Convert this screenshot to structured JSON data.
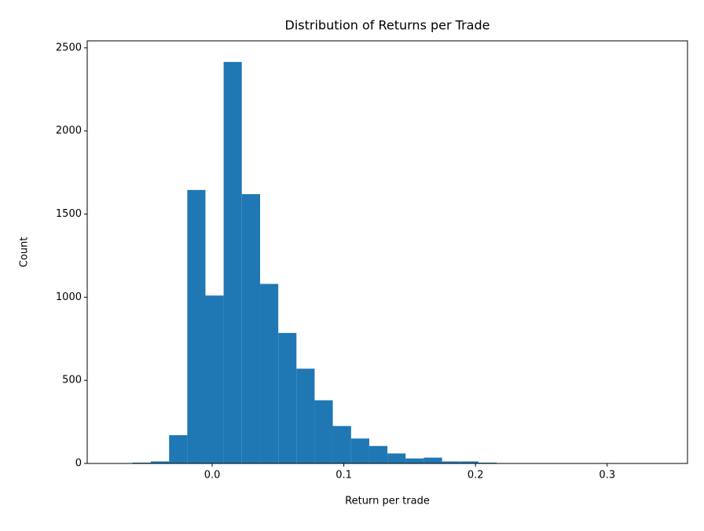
{
  "chart_data": {
    "type": "histogram",
    "title": "Distribution of Returns per Trade",
    "x_label": "Return per trade",
    "y_label": "Count",
    "bins": [
      -0.0742,
      -0.0604,
      -0.0466,
      -0.0327,
      -0.0189,
      -0.0051,
      0.0087,
      0.0225,
      0.0364,
      0.0502,
      0.064,
      0.0778,
      0.0916,
      0.1055,
      0.1193,
      0.1331,
      0.1469,
      0.1607,
      0.1746,
      0.1884,
      0.2022,
      0.216,
      0.2298,
      0.2437,
      0.2575,
      0.2713,
      0.2851,
      0.2989,
      0.3128,
      0.3266,
      0.3404
    ],
    "values": [
      1,
      5,
      12,
      170,
      1645,
      1010,
      2415,
      1620,
      1080,
      785,
      570,
      380,
      225,
      150,
      105,
      60,
      30,
      35,
      12,
      12,
      5,
      2,
      2,
      1,
      1,
      0,
      1,
      0,
      0,
      1
    ],
    "color": "#1f77b4",
    "xlim": [
      -0.0949,
      0.361
    ],
    "xticks": [
      {
        "value": 0,
        "label": "0.0"
      },
      0.1,
      0.2,
      0.3
    ],
    "ylim": [
      0,
      2542
    ],
    "yticks": [
      0,
      500,
      1000,
      1500,
      2000,
      2500
    ],
    "grid": false
  }
}
